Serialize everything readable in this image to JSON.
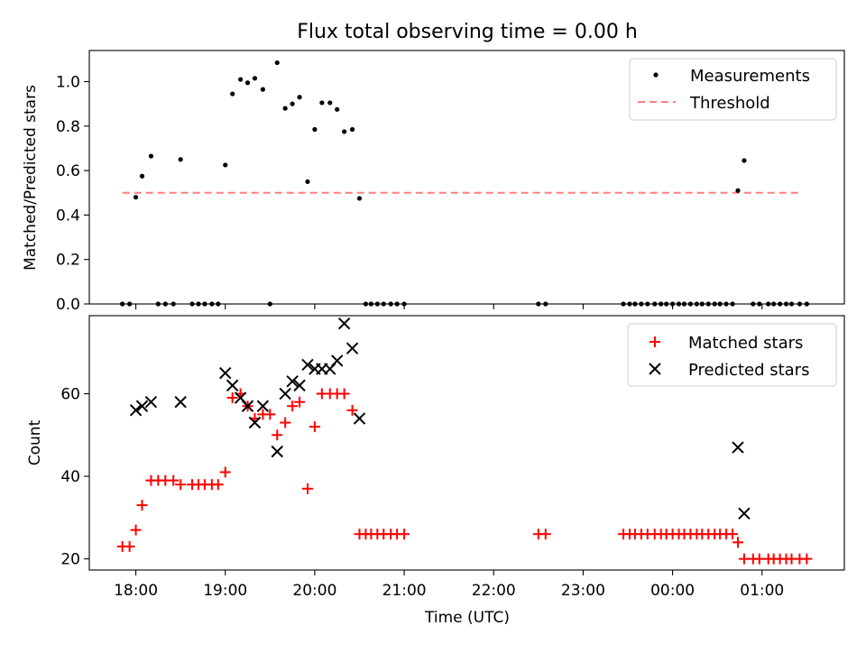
{
  "title": "Flux total observing time = 0.00 h",
  "colors": {
    "measure": "#000000",
    "threshold": "#ff7f7f",
    "matched": "#ff0000",
    "predicted": "#000000"
  },
  "chart_data": [
    {
      "type": "scatter",
      "title": "Flux total observing time = 0.00 h",
      "xlabel": "",
      "ylabel": "Matched/Predicted stars",
      "xlim": [
        17.48,
        25.92
      ],
      "ylim": [
        0,
        1.14
      ],
      "yticks": [
        0.0,
        0.2,
        0.4,
        0.6,
        0.8,
        1.0
      ],
      "ytick_labels": [
        "0.0",
        "0.2",
        "0.4",
        "0.6",
        "0.8",
        "1.0"
      ],
      "legend_position": "top-right",
      "legend": [
        "Measurements",
        "Threshold"
      ],
      "threshold": {
        "name": "Threshold",
        "y": 0.5,
        "x_start": 17.85,
        "x_end": 25.43
      },
      "series": [
        {
          "name": "Measurements",
          "x": [
            17.85,
            17.93,
            18.0,
            18.07,
            18.17,
            18.25,
            18.33,
            18.42,
            18.5,
            18.63,
            18.7,
            18.77,
            18.85,
            18.92,
            19.0,
            19.08,
            19.17,
            19.25,
            19.33,
            19.42,
            19.5,
            19.58,
            19.67,
            19.75,
            19.83,
            19.92,
            20.0,
            20.08,
            20.17,
            20.25,
            20.33,
            20.42,
            20.5,
            20.57,
            20.63,
            20.7,
            20.77,
            20.85,
            20.92,
            21.0,
            22.5,
            22.58,
            23.45,
            23.52,
            23.58,
            23.65,
            23.72,
            23.8,
            23.87,
            23.93,
            24.0,
            24.07,
            24.13,
            24.2,
            24.27,
            24.33,
            24.4,
            24.47,
            24.53,
            24.6,
            24.67,
            24.73,
            24.8,
            24.9,
            24.97,
            25.07,
            25.13,
            25.2,
            25.27,
            25.33,
            25.42,
            25.5
          ],
          "y": [
            0,
            0,
            0.48,
            0.575,
            0.665,
            0,
            0,
            0,
            0.65,
            0,
            0,
            0,
            0,
            0,
            0.625,
            0.945,
            1.01,
            0.995,
            1.015,
            0.965,
            0,
            1.085,
            0.88,
            0.9,
            0.93,
            0.55,
            0.785,
            0.905,
            0.905,
            0.875,
            0.775,
            0.785,
            0.475,
            0,
            0,
            0,
            0,
            0,
            0,
            0,
            0,
            0,
            0,
            0,
            0,
            0,
            0,
            0,
            0,
            0,
            0,
            0,
            0,
            0,
            0,
            0,
            0,
            0,
            0,
            0,
            0,
            0.51,
            0.645,
            0,
            0,
            0,
            0,
            0,
            0,
            0,
            0,
            0
          ]
        }
      ]
    },
    {
      "type": "scatter",
      "xlabel": "Time (UTC)",
      "ylabel": "Count",
      "xlim": [
        17.48,
        25.92
      ],
      "ylim": [
        17.3,
        78.9
      ],
      "yticks": [
        20,
        40,
        60
      ],
      "ytick_labels": [
        "20",
        "40",
        "60"
      ],
      "xticks": [
        18,
        19,
        20,
        21,
        22,
        23,
        24,
        25
      ],
      "xtick_labels": [
        "18:00",
        "19:00",
        "20:00",
        "21:00",
        "22:00",
        "23:00",
        "00:00",
        "01:00"
      ],
      "legend_position": "top-right",
      "legend": [
        "Matched stars",
        "Predicted stars"
      ],
      "series": [
        {
          "name": "Matched stars",
          "x": [
            17.85,
            17.93,
            18.0,
            18.07,
            18.17,
            18.25,
            18.33,
            18.42,
            18.5,
            18.63,
            18.7,
            18.77,
            18.85,
            18.92,
            19.0,
            19.08,
            19.17,
            19.25,
            19.33,
            19.42,
            19.5,
            19.58,
            19.67,
            19.75,
            19.83,
            19.92,
            20.0,
            20.08,
            20.17,
            20.25,
            20.33,
            20.42,
            20.5,
            20.57,
            20.63,
            20.7,
            20.77,
            20.85,
            20.92,
            21.0,
            22.5,
            22.58,
            23.45,
            23.52,
            23.58,
            23.65,
            23.72,
            23.8,
            23.87,
            23.93,
            24.0,
            24.07,
            24.13,
            24.2,
            24.27,
            24.33,
            24.4,
            24.47,
            24.53,
            24.6,
            24.67,
            24.73,
            24.8,
            24.9,
            24.97,
            25.07,
            25.13,
            25.2,
            25.27,
            25.33,
            25.42,
            25.5
          ],
          "y": [
            23,
            23,
            27,
            33,
            39,
            39,
            39,
            39,
            38,
            38,
            38,
            38,
            38,
            38,
            41,
            59,
            60,
            57,
            54,
            55,
            55,
            50,
            53,
            57,
            58,
            37,
            52,
            60,
            60,
            60,
            60,
            56,
            26,
            26,
            26,
            26,
            26,
            26,
            26,
            26,
            26,
            26,
            26,
            26,
            26,
            26,
            26,
            26,
            26,
            26,
            26,
            26,
            26,
            26,
            26,
            26,
            26,
            26,
            26,
            26,
            26,
            24,
            20,
            20,
            20,
            20,
            20,
            20,
            20,
            20,
            20,
            20
          ]
        },
        {
          "name": "Predicted stars",
          "x": [
            18.0,
            18.07,
            18.17,
            18.5,
            19.0,
            19.08,
            19.17,
            19.25,
            19.33,
            19.42,
            19.58,
            19.67,
            19.75,
            19.83,
            19.92,
            20.0,
            20.08,
            20.17,
            20.25,
            20.33,
            20.42,
            20.5,
            24.73,
            24.8
          ],
          "y": [
            56,
            57,
            58,
            58,
            65,
            62,
            59,
            57,
            53,
            57,
            46,
            60,
            63,
            62,
            67,
            66,
            66,
            66,
            68,
            77,
            71,
            54,
            47,
            31
          ]
        }
      ]
    }
  ]
}
